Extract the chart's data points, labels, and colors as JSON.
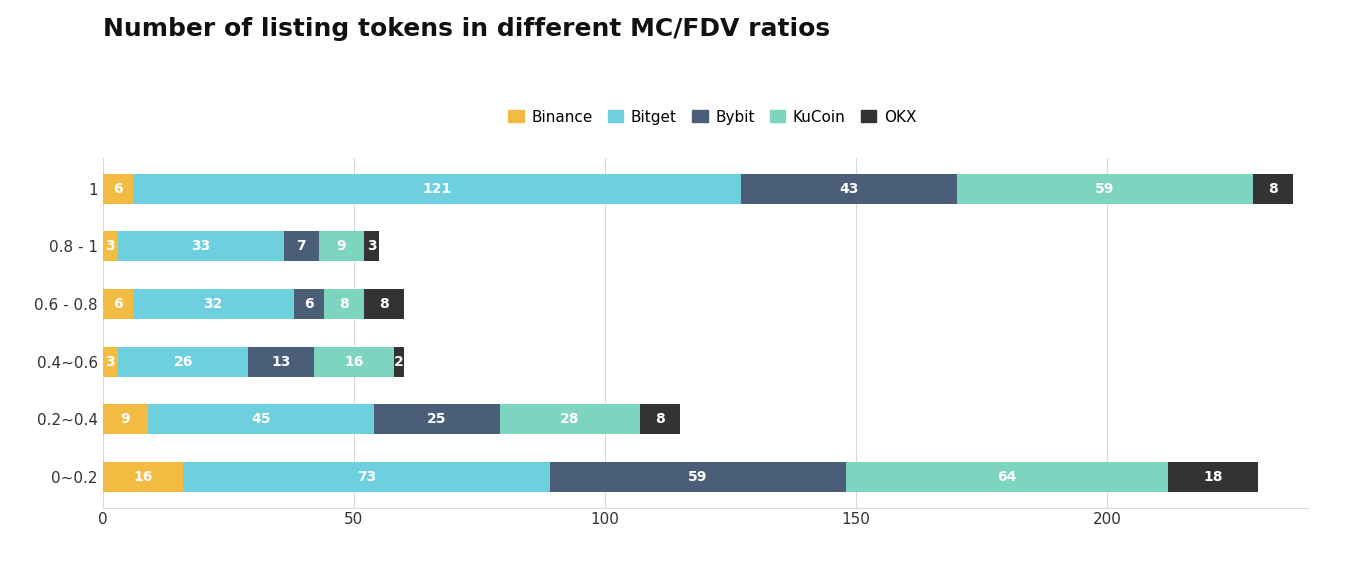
{
  "title": "Number of listing tokens in different MC/FDV ratios",
  "categories": [
    "0~0.2",
    "0.2~0.4",
    "0.4~0.6",
    "0.6 - 0.8",
    "0.8 - 1",
    "1"
  ],
  "series": {
    "Binance": [
      16,
      9,
      3,
      6,
      3,
      6
    ],
    "Bitget": [
      73,
      45,
      26,
      32,
      33,
      121
    ],
    "Bybit": [
      59,
      25,
      13,
      6,
      7,
      43
    ],
    "KuCoin": [
      64,
      28,
      16,
      8,
      9,
      59
    ],
    "OKX": [
      18,
      8,
      2,
      8,
      3,
      8
    ]
  },
  "colors": {
    "Binance": "#F2BC42",
    "Bitget": "#6ECFDF",
    "Bybit": "#4A5E78",
    "KuCoin": "#7DD4BF",
    "OKX": "#333333"
  },
  "xlim": [
    0,
    240
  ],
  "xticks": [
    0,
    50,
    100,
    150,
    200
  ],
  "background_color": "#FFFFFF",
  "grid_color": "#D8D8D8",
  "title_fontsize": 18,
  "legend_fontsize": 11,
  "bar_label_fontsize": 10,
  "axis_label_fontsize": 11,
  "bar_height": 0.52
}
